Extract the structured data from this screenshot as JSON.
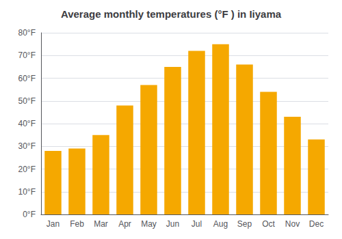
{
  "chart_data": {
    "type": "bar",
    "title": "Average monthly temperatures (°F ) in Iiyama",
    "categories": [
      "Jan",
      "Feb",
      "Mar",
      "Apr",
      "May",
      "Jun",
      "Jul",
      "Aug",
      "Sep",
      "Oct",
      "Nov",
      "Dec"
    ],
    "values": [
      28,
      29,
      35,
      48,
      57,
      65,
      72,
      75,
      66,
      54,
      43,
      33
    ],
    "color": "#F5A800",
    "ylim": [
      0,
      80
    ],
    "yticks": [
      {
        "value": 0,
        "label": "0°F"
      },
      {
        "value": 10,
        "label": "10°F"
      },
      {
        "value": 20,
        "label": "20°F"
      },
      {
        "value": 30,
        "label": "30°F"
      },
      {
        "value": 40,
        "label": "40°F"
      },
      {
        "value": 50,
        "label": "50°F"
      },
      {
        "value": 60,
        "label": "60°F"
      },
      {
        "value": 70,
        "label": "70°F"
      },
      {
        "value": 80,
        "label": "80°F"
      }
    ],
    "grid": true
  }
}
